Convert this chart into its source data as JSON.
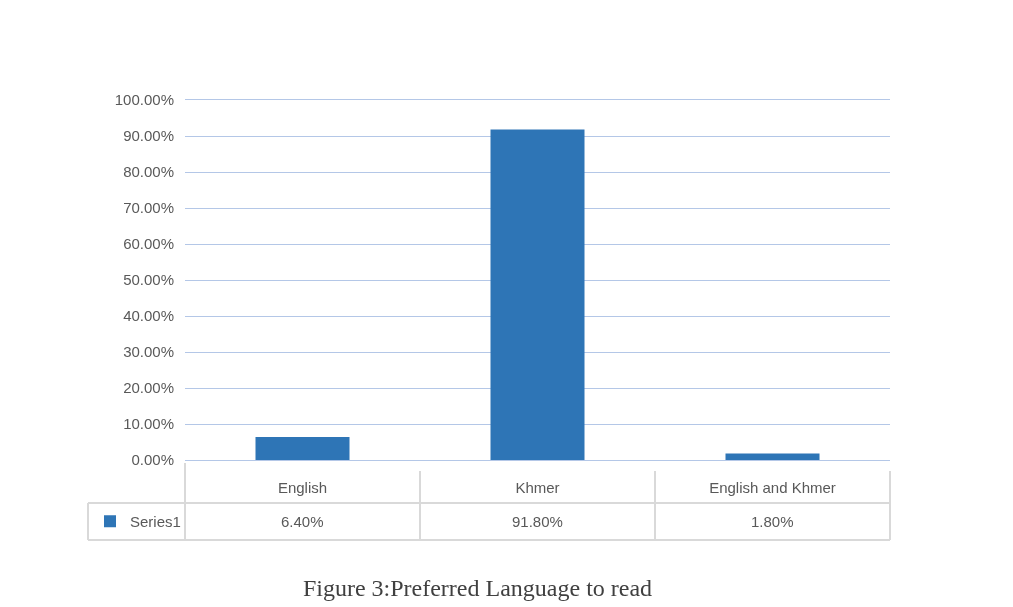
{
  "chart_data": {
    "type": "bar",
    "title": "Figure 3:Preferred Language to read",
    "categories": [
      "English",
      "Khmer",
      "English and Khmer"
    ],
    "series": [
      {
        "name": "Series1",
        "color": "#2e75b6",
        "values": [
          6.4,
          91.8,
          1.8
        ],
        "value_labels": [
          "6.40%",
          "91.80%",
          "1.80%"
        ]
      }
    ],
    "ylim": [
      0,
      100
    ],
    "yticks": [
      {
        "value": 0,
        "label": "0.00%"
      },
      {
        "value": 10,
        "label": "10.00%"
      },
      {
        "value": 20,
        "label": "20.00%"
      },
      {
        "value": 30,
        "label": "30.00%"
      },
      {
        "value": 40,
        "label": "40.00%"
      },
      {
        "value": 50,
        "label": "50.00%"
      },
      {
        "value": 60,
        "label": "60.00%"
      },
      {
        "value": 70,
        "label": "70.00%"
      },
      {
        "value": 80,
        "label": "80.00%"
      },
      {
        "value": 90,
        "label": "90.00%"
      },
      {
        "value": 100,
        "label": "100.00%"
      }
    ],
    "grid": "y",
    "legend": "bottom"
  }
}
